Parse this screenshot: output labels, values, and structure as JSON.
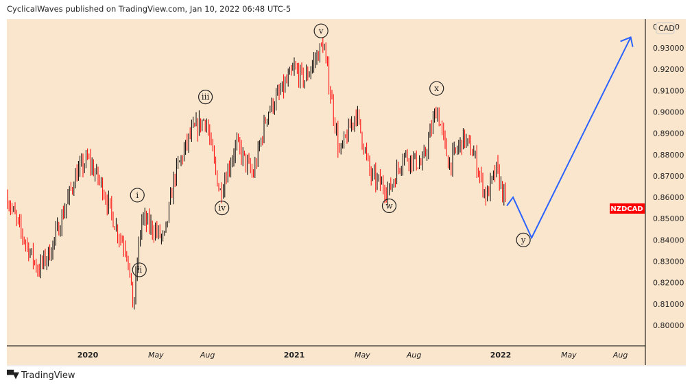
{
  "header": "CyclicalWaves published on TradingView.com, Jan 10, 2022 06:48 UTC-5",
  "footer": "TradingView",
  "colors": {
    "bg": "#fae5cd",
    "up": "#000000",
    "down": "#ff0000",
    "projection": "#2962ff",
    "badge": "#ff0000"
  },
  "chart_data": {
    "type": "candlestick",
    "symbol": "NZDCAD",
    "currency": "CAD",
    "ylim": [
      0.79,
      0.945
    ],
    "yticks": [
      "0.80000",
      "0.81000",
      "0.82000",
      "0.83000",
      "0.84000",
      "0.85000",
      "0.86000",
      "0.87000",
      "0.88000",
      "0.89000",
      "0.90000",
      "0.91000",
      "0.92000",
      "0.93000"
    ],
    "xticks": [
      {
        "t": 2020.0,
        "label": "2020",
        "bold": true
      },
      {
        "t": 2020.33,
        "label": "May"
      },
      {
        "t": 2020.58,
        "label": "Aug"
      },
      {
        "t": 2021.0,
        "label": "2021",
        "bold": true
      },
      {
        "t": 2021.33,
        "label": "May"
      },
      {
        "t": 2021.58,
        "label": "Aug"
      },
      {
        "t": 2022.0,
        "label": "2022",
        "bold": true
      },
      {
        "t": 2022.33,
        "label": "May"
      },
      {
        "t": 2022.58,
        "label": "Aug"
      }
    ],
    "price_path": [
      [
        2019.61,
        0.86
      ],
      [
        2019.67,
        0.845
      ],
      [
        2019.76,
        0.826
      ],
      [
        2019.82,
        0.835
      ],
      [
        2019.89,
        0.855
      ],
      [
        2019.94,
        0.87
      ],
      [
        2020.0,
        0.878
      ],
      [
        2020.07,
        0.865
      ],
      [
        2020.14,
        0.845
      ],
      [
        2020.19,
        0.835
      ],
      [
        2020.22,
        0.808
      ],
      [
        2020.26,
        0.85
      ],
      [
        2020.32,
        0.845
      ],
      [
        2020.37,
        0.84
      ],
      [
        2020.42,
        0.87
      ],
      [
        2020.5,
        0.89
      ],
      [
        2020.57,
        0.897
      ],
      [
        2020.64,
        0.862
      ],
      [
        2020.72,
        0.885
      ],
      [
        2020.8,
        0.87
      ],
      [
        2020.87,
        0.9
      ],
      [
        2020.94,
        0.91
      ],
      [
        2021.0,
        0.92
      ],
      [
        2021.05,
        0.915
      ],
      [
        2021.14,
        0.932
      ],
      [
        2021.22,
        0.88
      ],
      [
        2021.3,
        0.9
      ],
      [
        2021.37,
        0.87
      ],
      [
        2021.46,
        0.863
      ],
      [
        2021.53,
        0.88
      ],
      [
        2021.62,
        0.875
      ],
      [
        2021.69,
        0.902
      ],
      [
        2021.75,
        0.875
      ],
      [
        2021.82,
        0.888
      ],
      [
        2021.87,
        0.88
      ],
      [
        2021.93,
        0.86
      ],
      [
        2021.98,
        0.873
      ],
      [
        2022.03,
        0.855
      ]
    ],
    "projection": [
      [
        2022.03,
        0.856
      ],
      [
        2022.06,
        0.86
      ],
      [
        2022.15,
        0.841
      ],
      [
        2022.63,
        0.935
      ]
    ],
    "wave_labels": [
      {
        "text": "i",
        "t": 2020.24,
        "p": 0.861
      },
      {
        "text": "ii",
        "t": 2020.25,
        "p": 0.826
      },
      {
        "text": "iii",
        "t": 2020.57,
        "p": 0.907
      },
      {
        "text": "iv",
        "t": 2020.65,
        "p": 0.855
      },
      {
        "text": "v",
        "t": 2021.13,
        "p": 0.938
      },
      {
        "text": "w",
        "t": 2021.46,
        "p": 0.856
      },
      {
        "text": "x",
        "t": 2021.69,
        "p": 0.911
      },
      {
        "text": "y",
        "t": 2022.11,
        "p": 0.84
      }
    ]
  }
}
